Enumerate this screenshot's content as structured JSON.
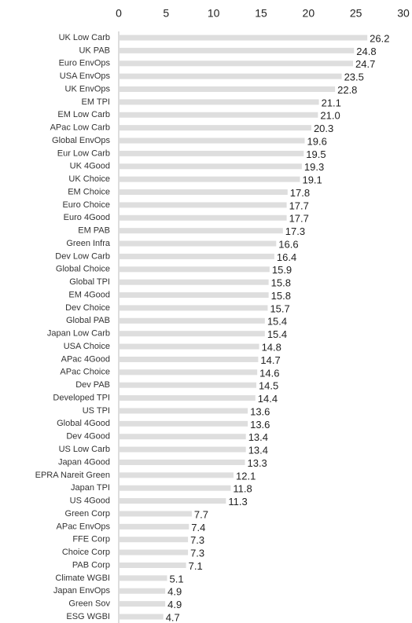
{
  "chart_data": {
    "type": "bar",
    "orientation": "horizontal",
    "color": "#dedede",
    "categories": [
      "UK Low Carb",
      "UK PAB",
      "Euro EnvOps",
      "USA EnvOps",
      "UK EnvOps",
      "EM TPI",
      "EM Low Carb",
      "APac Low Carb",
      "Global EnvOps",
      "Eur Low Carb",
      "UK 4Good",
      "UK Choice",
      "EM Choice",
      "Euro Choice",
      "Euro 4Good",
      "EM PAB",
      "Green Infra",
      "Dev Low Carb",
      "Global Choice",
      "Global TPI",
      "EM 4Good",
      "Dev Choice",
      "Global PAB",
      "Japan Low Carb",
      "USA Choice",
      "APac 4Good",
      "APac Choice",
      "Dev PAB",
      "Developed TPI",
      "US TPI",
      "Global 4Good",
      "Dev 4Good",
      "US Low Carb",
      "Japan 4Good",
      "EPRA Nareit Green",
      "Japan TPI",
      "US 4Good",
      "Green Corp",
      "APac EnvOps",
      "FFE Corp",
      "Choice Corp",
      "PAB Corp",
      "Climate WGBI",
      "Japan EnvOps",
      "Green Sov",
      "ESG WGBI"
    ],
    "values": [
      26.2,
      24.8,
      24.7,
      23.5,
      22.8,
      21.1,
      21.0,
      20.3,
      19.6,
      19.5,
      19.3,
      19.1,
      17.8,
      17.7,
      17.7,
      17.3,
      16.6,
      16.4,
      15.9,
      15.8,
      15.8,
      15.7,
      15.4,
      15.4,
      14.8,
      14.7,
      14.6,
      14.5,
      14.4,
      13.6,
      13.6,
      13.4,
      13.4,
      13.3,
      12.1,
      11.8,
      11.3,
      7.7,
      7.4,
      7.3,
      7.3,
      7.1,
      5.1,
      4.9,
      4.9,
      4.7
    ],
    "value_labels": [
      "26.2",
      "24.8",
      "24.7",
      "23.5",
      "22.8",
      "21.1",
      "21.0",
      "20.3",
      "19.6",
      "19.5",
      "19.3",
      "19.1",
      "17.8",
      "17.7",
      "17.7",
      "17.3",
      "16.6",
      "16.4",
      "15.9",
      "15.8",
      "15.8",
      "15.7",
      "15.4",
      "15.4",
      "14.8",
      "14.7",
      "14.6",
      "14.5",
      "14.4",
      "13.6",
      "13.6",
      "13.4",
      "13.4",
      "13.3",
      "12.1",
      "11.8",
      "11.3",
      "7.7",
      "7.4",
      "7.3",
      "7.3",
      "7.1",
      "5.1",
      "4.9",
      "4.9",
      "4.7"
    ],
    "xlim": [
      0,
      30
    ],
    "xticks": [
      0,
      5,
      10,
      15,
      20,
      25,
      30
    ]
  }
}
